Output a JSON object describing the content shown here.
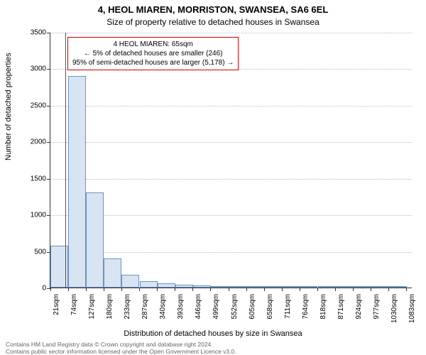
{
  "title_line1": "4, HEOL MIAREN, MORRISTON, SWANSEA, SA6 6EL",
  "title_line2": "Size of property relative to detached houses in Swansea",
  "ylabel": "Number of detached properties",
  "xlabel": "Distribution of detached houses by size in Swansea",
  "footer1": "Contains HM Land Registry data © Crown copyright and database right 2024.",
  "footer2": "Contains public sector information licensed under the Open Government Licence v3.0.",
  "info_box": {
    "line1": "4 HEOL MIAREN: 65sqm",
    "line2": "← 5% of detached houses are smaller (246)",
    "line3": "95% of semi-detached houses are larger (5,178) →"
  },
  "chart": {
    "type": "histogram",
    "ylim": [
      0,
      3500
    ],
    "ytick_step": 500,
    "xlim": [
      21,
      1100
    ],
    "xtick_start": 21,
    "xtick_step": 53,
    "xtick_count": 21,
    "xtick_suffix": "sqm",
    "xtick_labels": [
      "21sqm",
      "74sqm",
      "127sqm",
      "180sqm",
      "233sqm",
      "287sqm",
      "340sqm",
      "393sqm",
      "446sqm",
      "499sqm",
      "552sqm",
      "605sqm",
      "658sqm",
      "711sqm",
      "764sqm",
      "818sqm",
      "871sqm",
      "924sqm",
      "977sqm",
      "1030sqm",
      "1083sqm"
    ],
    "bar_fill": "#d8e4f2",
    "bar_border": "#6a93c4",
    "grid_color": "#bbbbbb",
    "background_color": "#ffffff",
    "marker_x": 65,
    "marker_color": "#e02020",
    "bars": [
      {
        "x": 21,
        "count": 570
      },
      {
        "x": 74,
        "count": 2900
      },
      {
        "x": 127,
        "count": 1300
      },
      {
        "x": 180,
        "count": 400
      },
      {
        "x": 233,
        "count": 180
      },
      {
        "x": 287,
        "count": 90
      },
      {
        "x": 340,
        "count": 60
      },
      {
        "x": 393,
        "count": 40
      },
      {
        "x": 446,
        "count": 30
      },
      {
        "x": 499,
        "count": 20
      },
      {
        "x": 552,
        "count": 15
      },
      {
        "x": 605,
        "count": 10
      },
      {
        "x": 658,
        "count": 8
      },
      {
        "x": 711,
        "count": 6
      },
      {
        "x": 764,
        "count": 5
      },
      {
        "x": 818,
        "count": 4
      },
      {
        "x": 871,
        "count": 3
      },
      {
        "x": 924,
        "count": 2
      },
      {
        "x": 977,
        "count": 2
      },
      {
        "x": 1030,
        "count": 1
      }
    ]
  }
}
